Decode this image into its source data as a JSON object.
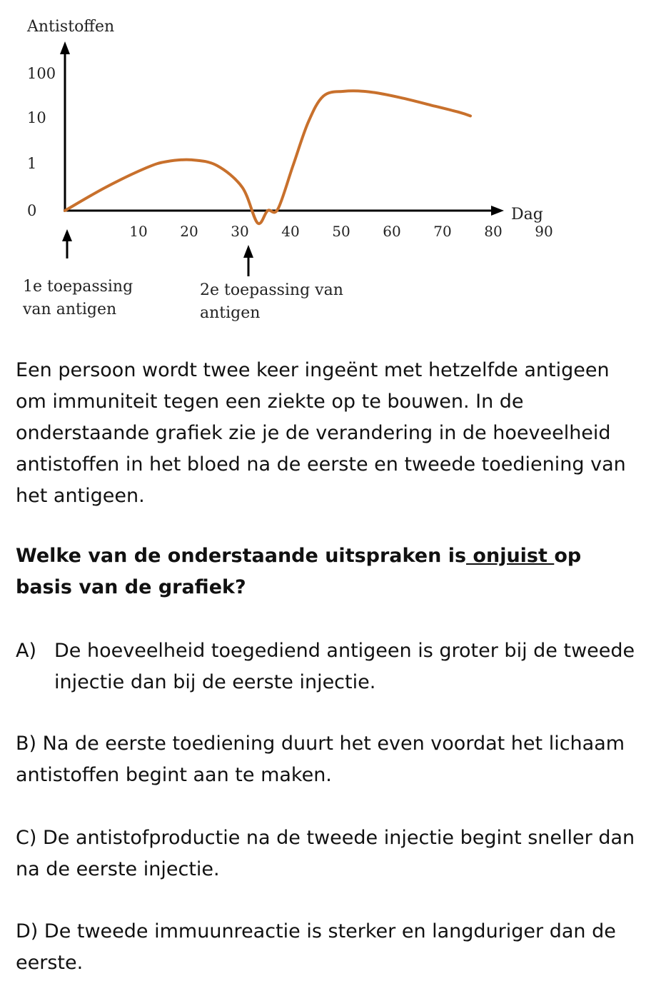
{
  "chart_data": {
    "type": "line",
    "ylabel": "Antistoffen",
    "xlabel": "Dag",
    "y_scale": "log",
    "y_ticks": [
      "100",
      "10",
      "1",
      "0"
    ],
    "x_ticks": [
      "10",
      "20",
      "30",
      "40",
      "50",
      "60",
      "70",
      "80",
      "90"
    ],
    "xlim": [
      0,
      95
    ],
    "series": [
      {
        "color": "#C8702C",
        "points": [
          {
            "x": 0,
            "y": 0
          },
          {
            "x": 8,
            "y": 0.3
          },
          {
            "x": 16,
            "y": 0.8
          },
          {
            "x": 20,
            "y": 1.1
          },
          {
            "x": 25,
            "y": 1.2
          },
          {
            "x": 30,
            "y": 0.9
          },
          {
            "x": 35,
            "y": 0.3
          },
          {
            "x": 38,
            "y": 0.05
          },
          {
            "x": 40,
            "y": 0
          },
          {
            "x": 42,
            "y": 0.1
          },
          {
            "x": 45,
            "y": 0.9
          },
          {
            "x": 48,
            "y": 8
          },
          {
            "x": 51,
            "y": 30
          },
          {
            "x": 55,
            "y": 38
          },
          {
            "x": 60,
            "y": 37
          },
          {
            "x": 66,
            "y": 28
          },
          {
            "x": 73,
            "y": 18
          },
          {
            "x": 78,
            "y": 13
          },
          {
            "x": 80,
            "y": 11
          }
        ]
      }
    ],
    "annotations": [
      {
        "x": 0,
        "text": "1e toepassing van antigen"
      },
      {
        "x": 40,
        "text": "2e toepassing van antigen"
      }
    ]
  },
  "annotation_1": {
    "line1": "1e toepassing",
    "line2": "van antigen"
  },
  "annotation_2": {
    "line1": "2e toepassing van",
    "line2": "antigen"
  },
  "intro": "Een persoon wordt twee keer ingeënt met hetzelfde antigeen om immuniteit tegen een ziekte op te bouwen. In de onderstaande grafiek zie je de verandering in de hoeveelheid antistoffen in het bloed na de eerste en tweede toediening van het antigeen.",
  "question": {
    "before": "Welke van de onderstaande uitspraken is",
    "underlined": " onjuist ",
    "after": "op basis van de grafiek?"
  },
  "options": {
    "a_letter": "A)",
    "a_text": "De hoeveelheid toegediend antigeen is groter bij de tweede injectie dan bij de eerste injectie.",
    "b": "B) Na de eerste toediening duurt het even voordat het lichaam antistoffen begint aan te maken.",
    "c": "C) De antistofproductie na de tweede injectie begint sneller dan na de eerste injectie.",
    "d": "D) De tweede immuunreactie is sterker en langduriger dan de eerste."
  }
}
